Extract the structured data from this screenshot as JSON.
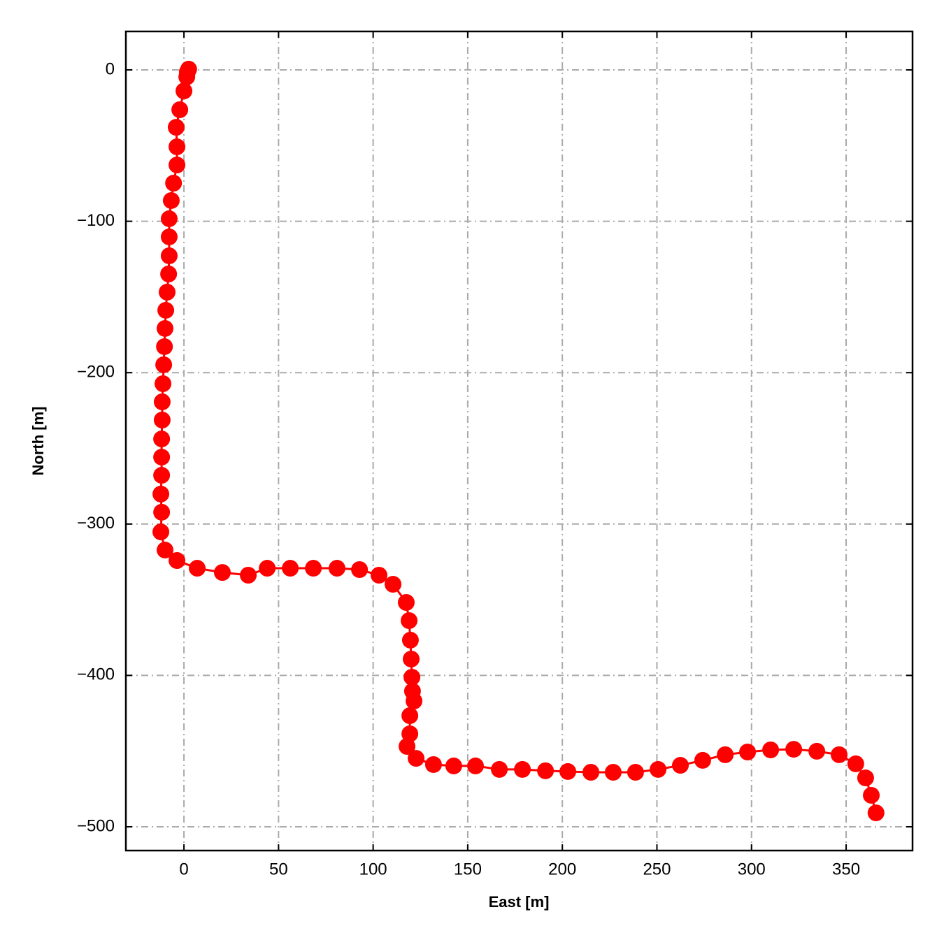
{
  "chart_data": {
    "type": "line",
    "xlabel": "East [m]",
    "ylabel": "North [m]",
    "color": "#ff0000",
    "marker": true,
    "grid": true,
    "xlim": [
      -30.7,
      385.1
    ],
    "ylim": [
      -515.7,
      25.4
    ],
    "xticks": [
      0,
      50,
      100,
      150,
      200,
      250,
      300,
      350
    ],
    "yticks": [
      {
        "value": -500,
        "label": "−500"
      },
      {
        "value": -400,
        "label": "−400"
      },
      {
        "value": -300,
        "label": "−300"
      },
      {
        "value": -200,
        "label": "−200"
      },
      {
        "value": -100,
        "label": "−100"
      },
      0
    ],
    "x": [
      2.5,
      1.8,
      1.5,
      0,
      -2.2,
      -4.1,
      -3.7,
      -3.7,
      -5.5,
      -6.7,
      -7.8,
      -7.8,
      -7.8,
      -8.1,
      -8.9,
      -9.6,
      -10,
      -10.3,
      -10.7,
      -11.1,
      -11.5,
      -11.5,
      -11.8,
      -11.8,
      -11.8,
      -12.2,
      -11.8,
      -12.2,
      -10,
      -3.7,
      7,
      20.3,
      34,
      44,
      56.2,
      68.4,
      80.9,
      92.8,
      103.1,
      110.5,
      117.5,
      119,
      119.7,
      120.1,
      120.5,
      120.8,
      121.6,
      119.4,
      119.4,
      117.9,
      122.7,
      131.9,
      142.6,
      154.1,
      166.7,
      178.9,
      191.1,
      202.9,
      215.1,
      226.9,
      238.7,
      250.6,
      262.4,
      274.2,
      286.1,
      297.9,
      310.1,
      322.3,
      334.5,
      346.3,
      355.1,
      360.3,
      363.3,
      365.8
    ],
    "values": [
      0.5,
      -1.4,
      -4.6,
      -13.9,
      -26.3,
      -37.9,
      -50.8,
      -62.8,
      -74.8,
      -86.3,
      -98.3,
      -110.3,
      -122.8,
      -134.8,
      -146.8,
      -158.8,
      -170.8,
      -182.8,
      -194.8,
      -207.3,
      -219.3,
      -231.3,
      -243.8,
      -255.8,
      -267.8,
      -280.2,
      -292.2,
      -305.2,
      -317.2,
      -324.1,
      -329.2,
      -332,
      -333.8,
      -329.2,
      -329.2,
      -329.2,
      -329.2,
      -330.1,
      -333.8,
      -339.8,
      -351.8,
      -363.8,
      -376.7,
      -389.2,
      -401.2,
      -410.4,
      -416.9,
      -426.6,
      -438.6,
      -446.9,
      -454.8,
      -458.9,
      -459.8,
      -459.8,
      -462.1,
      -462.1,
      -463,
      -463.5,
      -464,
      -464,
      -464,
      -462.1,
      -459.4,
      -456.1,
      -452.4,
      -450.6,
      -449.2,
      -448.8,
      -450.1,
      -452.4,
      -458.4,
      -467.7,
      -479.2,
      -490.8
    ]
  }
}
